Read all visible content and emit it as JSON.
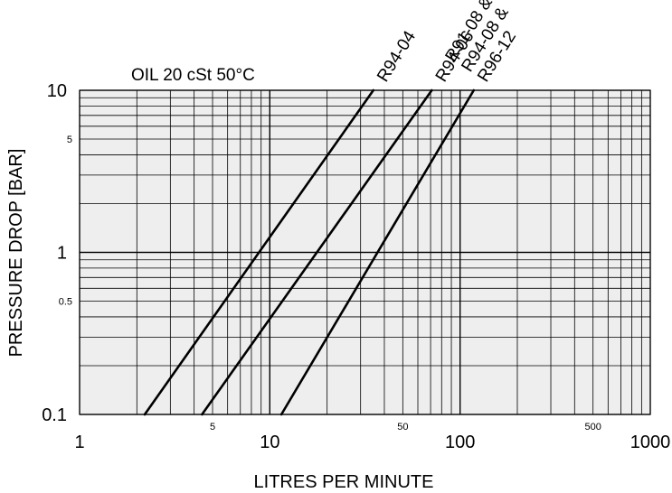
{
  "chart_data": {
    "type": "line",
    "xscale": "log",
    "yscale": "log",
    "xlim": [
      1,
      1000
    ],
    "ylim": [
      0.1,
      10
    ],
    "xlabel": "LITRES PER MINUTE",
    "ylabel": "PRESSURE DROP [BAR]",
    "annotation": "OIL 20 cSt   50°C",
    "grid": true,
    "x_ticks_major": [
      "1",
      "10",
      "100",
      "1000"
    ],
    "x_ticks_minor": [
      "5",
      "50",
      "500"
    ],
    "y_ticks_major": [
      "0.1",
      "1",
      "10"
    ],
    "y_ticks_minor": [
      "0.5",
      "5"
    ],
    "series": [
      {
        "name": "R94-04",
        "x": [
          2.2,
          35
        ],
        "y": [
          0.1,
          10
        ]
      },
      {
        "name": "R94-06",
        "x": [
          4.4,
          71
        ],
        "y": [
          0.1,
          10
        ]
      },
      {
        "name": "R91-08 &\nR94-08 &\nR96-12",
        "x": [
          11.5,
          118
        ],
        "y": [
          0.1,
          10
        ]
      }
    ],
    "colors": {
      "plot_background": "#eeeeee",
      "grid": "#000000",
      "line": "#000000"
    }
  }
}
